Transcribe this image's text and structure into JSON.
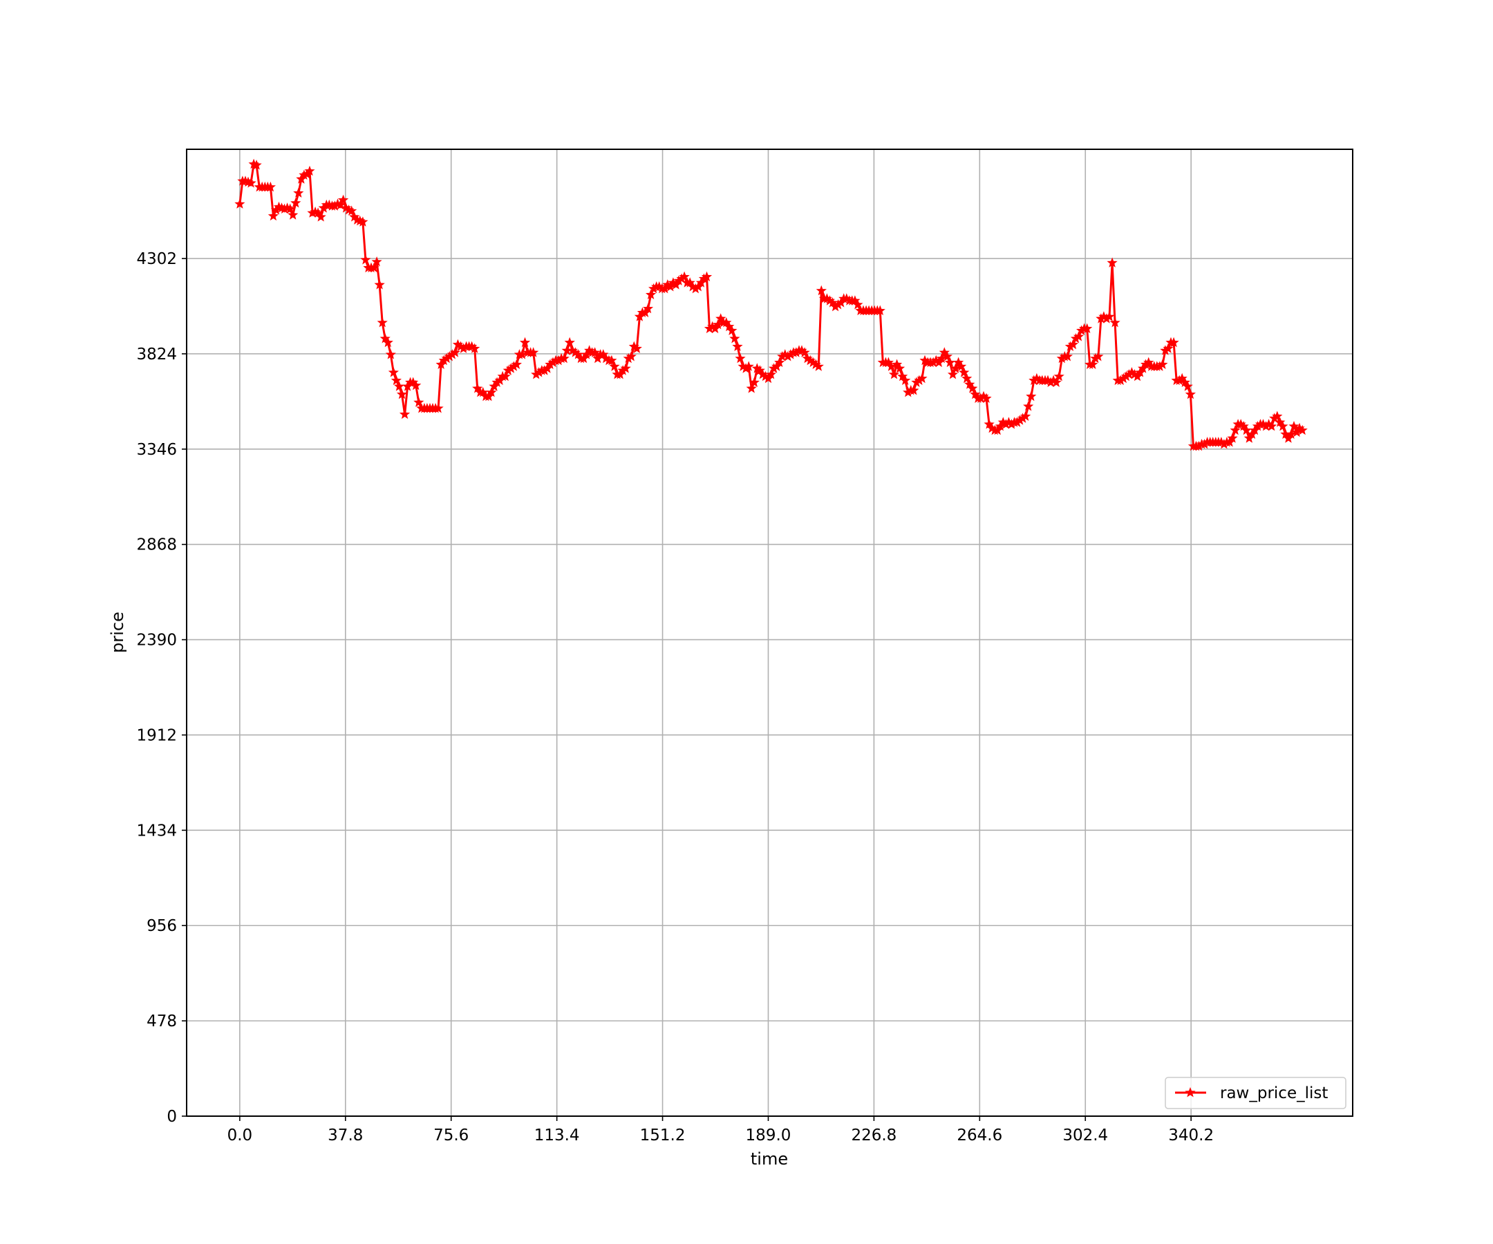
{
  "chart_data": {
    "type": "line",
    "title": "",
    "xlabel": "time",
    "ylabel": "price",
    "x_ticks": [
      0.0,
      37.8,
      75.6,
      113.4,
      151.2,
      189.0,
      226.8,
      264.6,
      302.4,
      340.2
    ],
    "x_tick_labels": [
      "0.0",
      "37.8",
      "75.6",
      "113.4",
      "151.2",
      "189.0",
      "226.8",
      "264.6",
      "302.4",
      "340.2"
    ],
    "y_ticks": [
      0,
      478,
      956,
      1434,
      1912,
      2390,
      2868,
      3346,
      3824,
      4302
    ],
    "y_tick_labels": [
      "0",
      "478",
      "956",
      "1434",
      "1912",
      "2390",
      "2868",
      "3346",
      "3824",
      "4302"
    ],
    "xlim": [
      -19,
      398
    ],
    "ylim": [
      0,
      4850
    ],
    "grid": true,
    "legend_position": "lower-right",
    "marker": "star",
    "series_color": "#ff0000",
    "series": [
      {
        "name": "raw_price_list",
        "x": [
          0,
          1,
          2,
          3,
          4,
          5,
          6,
          7,
          8,
          9,
          10,
          11,
          12,
          13,
          14,
          15,
          16,
          17,
          18,
          19,
          20,
          21,
          22,
          23,
          24,
          25,
          26,
          27,
          28,
          29,
          30,
          31,
          32,
          33,
          34,
          35,
          36,
          37,
          38,
          39,
          40,
          41,
          42,
          43,
          44,
          45,
          46,
          47,
          48,
          49,
          50,
          51,
          52,
          53,
          54,
          55,
          56,
          57,
          58,
          59,
          60,
          61,
          62,
          63,
          64,
          65,
          66,
          67,
          68,
          69,
          70,
          71,
          72,
          73,
          74,
          75,
          76,
          77,
          78,
          79,
          80,
          81,
          82,
          83,
          84,
          85,
          86,
          87,
          88,
          89,
          90,
          91,
          92,
          93,
          94,
          95,
          96,
          97,
          98,
          99,
          100,
          101,
          102,
          103,
          104,
          105,
          106,
          107,
          108,
          109,
          110,
          111,
          112,
          113,
          114,
          115,
          116,
          117,
          118,
          119,
          120,
          121,
          122,
          123,
          124,
          125,
          126,
          127,
          128,
          129,
          130,
          131,
          132,
          133,
          134,
          135,
          136,
          137,
          138,
          139,
          140,
          141,
          142,
          143,
          144,
          145,
          146,
          147,
          148,
          149,
          150,
          151,
          152,
          153,
          154,
          155,
          156,
          157,
          158,
          159,
          160,
          161,
          162,
          163,
          164,
          165,
          166,
          167,
          168,
          169,
          170,
          171,
          172,
          173,
          174,
          175,
          176,
          177,
          178,
          179,
          180,
          181,
          182,
          183,
          184,
          185,
          186,
          187,
          188,
          189,
          190,
          191,
          192,
          193,
          194,
          195,
          196,
          197,
          198,
          199,
          200,
          201,
          202,
          203,
          204,
          205,
          206,
          207,
          208,
          209,
          210,
          211,
          212,
          213,
          214,
          215,
          216,
          217,
          218,
          219,
          220,
          221,
          222,
          223,
          224,
          225,
          226,
          227,
          228,
          229,
          230,
          231,
          232,
          233,
          234,
          235,
          236,
          237,
          238,
          239,
          240,
          241,
          242,
          243,
          244,
          245,
          246,
          247,
          248,
          249,
          250,
          251,
          252,
          253,
          254,
          255,
          256,
          257,
          258,
          259,
          260,
          261,
          262,
          263,
          264,
          265,
          266,
          267,
          268,
          269,
          270,
          271,
          272,
          273,
          274,
          275,
          276,
          277,
          278,
          279,
          280,
          281,
          282,
          283,
          284,
          285,
          286,
          287,
          288,
          289,
          290,
          291,
          292,
          293,
          294,
          295,
          296,
          297,
          298,
          299,
          300,
          301,
          302,
          303,
          304,
          305,
          306,
          307,
          308,
          309,
          310,
          311,
          312,
          313,
          314,
          315,
          316,
          317,
          318,
          319,
          320,
          321,
          322,
          323,
          324,
          325,
          326,
          327,
          328,
          329,
          330,
          331,
          332,
          333,
          334,
          335,
          336,
          337,
          338,
          339,
          340,
          341,
          342,
          343,
          344,
          345,
          346,
          347,
          348,
          349,
          350,
          351,
          352,
          353,
          354,
          355,
          356,
          357,
          358,
          359,
          360,
          361,
          362,
          363,
          364,
          365,
          366,
          367,
          368,
          369,
          370,
          371,
          372,
          373,
          374,
          375,
          376,
          377,
          378,
          379,
          380
        ],
        "y": [
          4575,
          4690,
          4690,
          4685,
          4680,
          4775,
          4770,
          4660,
          4660,
          4660,
          4660,
          4660,
          4515,
          4545,
          4560,
          4555,
          4550,
          4555,
          4550,
          4520,
          4580,
          4630,
          4700,
          4720,
          4725,
          4740,
          4530,
          4535,
          4530,
          4510,
          4555,
          4570,
          4570,
          4565,
          4565,
          4575,
          4570,
          4595,
          4555,
          4545,
          4540,
          4510,
          4495,
          4490,
          4485,
          4295,
          4255,
          4255,
          4255,
          4285,
          4170,
          3980,
          3900,
          3880,
          3820,
          3730,
          3690,
          3660,
          3620,
          3520,
          3660,
          3680,
          3680,
          3665,
          3580,
          3550,
          3550,
          3550,
          3550,
          3550,
          3550,
          3550,
          3770,
          3790,
          3800,
          3810,
          3820,
          3830,
          3870,
          3860,
          3850,
          3860,
          3860,
          3860,
          3850,
          3650,
          3630,
          3630,
          3610,
          3610,
          3630,
          3660,
          3680,
          3690,
          3710,
          3710,
          3740,
          3750,
          3760,
          3770,
          3820,
          3820,
          3880,
          3830,
          3830,
          3830,
          3720,
          3730,
          3740,
          3740,
          3750,
          3770,
          3780,
          3790,
          3790,
          3800,
          3800,
          3840,
          3880,
          3840,
          3830,
          3820,
          3800,
          3800,
          3820,
          3840,
          3830,
          3830,
          3800,
          3820,
          3820,
          3800,
          3790,
          3790,
          3760,
          3720,
          3720,
          3740,
          3750,
          3800,
          3810,
          3860,
          3850,
          4010,
          4030,
          4030,
          4050,
          4120,
          4150,
          4160,
          4160,
          4150,
          4150,
          4170,
          4160,
          4180,
          4170,
          4190,
          4200,
          4210,
          4180,
          4180,
          4160,
          4150,
          4160,
          4180,
          4200,
          4210,
          3950,
          3960,
          3950,
          3970,
          4000,
          3980,
          3980,
          3960,
          3940,
          3900,
          3860,
          3800,
          3760,
          3750,
          3760,
          3650,
          3680,
          3750,
          3740,
          3720,
          3710,
          3700,
          3720,
          3750,
          3760,
          3780,
          3810,
          3820,
          3810,
          3820,
          3830,
          3830,
          3840,
          3840,
          3830,
          3800,
          3790,
          3780,
          3770,
          3760,
          4140,
          4100,
          4100,
          4090,
          4080,
          4060,
          4070,
          4080,
          4100,
          4100,
          4090,
          4090,
          4090,
          4070,
          4040,
          4040,
          4040,
          4040,
          4040,
          4040,
          4040,
          4040,
          3780,
          3780,
          3780,
          3760,
          3720,
          3770,
          3750,
          3710,
          3690,
          3630,
          3640,
          3640,
          3680,
          3690,
          3700,
          3790,
          3780,
          3780,
          3780,
          3790,
          3780,
          3800,
          3830,
          3810,
          3780,
          3720,
          3750,
          3780,
          3760,
          3730,
          3700,
          3670,
          3650,
          3620,
          3600,
          3600,
          3610,
          3600,
          3470,
          3450,
          3440,
          3440,
          3460,
          3480,
          3470,
          3480,
          3470,
          3480,
          3480,
          3490,
          3500,
          3510,
          3560,
          3610,
          3690,
          3700,
          3690,
          3690,
          3690,
          3690,
          3680,
          3690,
          3680,
          3710,
          3800,
          3810,
          3810,
          3860,
          3870,
          3900,
          3910,
          3940,
          3950,
          3950,
          3770,
          3770,
          3800,
          3810,
          4000,
          4010,
          4000,
          4010,
          4280,
          3980,
          3690,
          3690,
          3700,
          3710,
          3720,
          3730,
          3720,
          3710,
          3730,
          3750,
          3770,
          3780,
          3760,
          3760,
          3760,
          3760,
          3770,
          3840,
          3850,
          3880,
          3880,
          3690,
          3690,
          3700,
          3680,
          3660,
          3620,
          3360,
          3360,
          3360,
          3370,
          3370,
          3380,
          3380,
          3380,
          3380,
          3380,
          3380,
          3370,
          3380,
          3380,
          3400,
          3440,
          3470,
          3470,
          3460,
          3440,
          3400,
          3420,
          3440,
          3460,
          3470,
          3470,
          3460,
          3470,
          3460,
          3500,
          3510,
          3480,
          3460,
          3420,
          3400,
          3420,
          3460,
          3430,
          3450,
          3440
        ]
      }
    ]
  }
}
